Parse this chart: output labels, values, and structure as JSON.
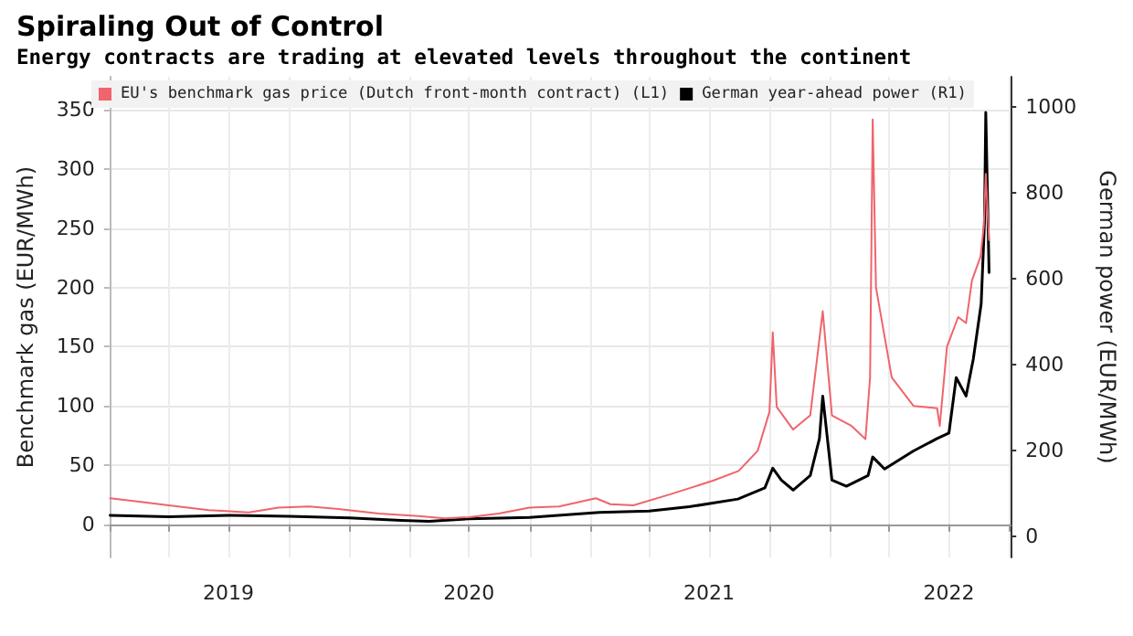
{
  "chart_data": {
    "type": "line",
    "title": "Spiraling Out of Control",
    "subtitle": "Energy contracts are trading at elevated levels throughout the continent",
    "ylabel": "Benchmark gas (EUR/MWh)",
    "y2label": "German power (EUR/MWh)",
    "series": [
      {
        "name": "EU's benchmark gas price (Dutch front-month contract) (L1)",
        "color": "#f0646c",
        "x": [
          "2019-01-02",
          "2019-02-15",
          "2019-04-01",
          "2019-06-01",
          "2019-08-01",
          "2019-09-15",
          "2019-11-01",
          "2019-12-15",
          "2020-02-15",
          "2020-04-15",
          "2020-05-25",
          "2020-07-01",
          "2020-08-15",
          "2020-10-01",
          "2020-11-15",
          "2021-01-10",
          "2021-02-01",
          "2021-03-08",
          "2021-05-01",
          "2021-07-08",
          "2021-08-15",
          "2021-09-13",
          "2021-10-01",
          "2021-10-06",
          "2021-10-12",
          "2021-11-06",
          "2021-12-02",
          "2021-12-21",
          "2022-01-04",
          "2022-02-03",
          "2022-02-24",
          "2022-03-03",
          "2022-03-07",
          "2022-03-12",
          "2022-04-05",
          "2022-05-08",
          "2022-06-13",
          "2022-06-17",
          "2022-06-28",
          "2022-07-15",
          "2022-07-27",
          "2022-08-05",
          "2022-08-18",
          "2022-08-23",
          "2022-08-26",
          "2022-08-29",
          "2022-08-31"
        ],
        "values": [
          22,
          19,
          16,
          12,
          10,
          14,
          15,
          13,
          9,
          7,
          5,
          6,
          9,
          14,
          15,
          22,
          17,
          16,
          25,
          37,
          45,
          62,
          95,
          162,
          99,
          80,
          92,
          180,
          92,
          83,
          72,
          124,
          342,
          200,
          124,
          100,
          98,
          83,
          150,
          175,
          170,
          206,
          226,
          252,
          296,
          262,
          240
        ]
      },
      {
        "name": "German year-ahead power (R1)",
        "color": "#000000",
        "axis": "y2",
        "x": [
          "2019-01-02",
          "2019-04-01",
          "2019-07-01",
          "2019-10-01",
          "2020-01-01",
          "2020-03-20",
          "2020-05-01",
          "2020-07-01",
          "2020-10-01",
          "2021-01-15",
          "2021-04-01",
          "2021-06-01",
          "2021-08-14",
          "2021-09-24",
          "2021-10-06",
          "2021-10-19",
          "2021-11-06",
          "2021-12-02",
          "2021-12-16",
          "2021-12-21",
          "2022-01-04",
          "2022-01-26",
          "2022-02-28",
          "2022-03-07",
          "2022-03-25",
          "2022-05-08",
          "2022-06-13",
          "2022-07-01",
          "2022-07-12",
          "2022-07-27",
          "2022-08-07",
          "2022-08-19",
          "2022-08-24",
          "2022-08-26",
          "2022-08-31"
        ],
        "values": [
          48,
          45,
          48,
          46,
          42,
          36,
          34,
          40,
          43,
          55,
          58,
          68,
          86,
          112,
          158,
          130,
          107,
          141,
          227,
          326,
          130,
          116,
          141,
          184,
          156,
          198,
          227,
          240,
          369,
          326,
          412,
          541,
          730,
          987,
          614
        ]
      }
    ],
    "xlim": [
      "2019-01-01",
      "2022-10-03"
    ],
    "xticks": [
      {
        "value": "2019-01-01",
        "label": null
      },
      {
        "value": "2019-04-01",
        "label": null
      },
      {
        "value": "2019-07-01",
        "label": "2019"
      },
      {
        "value": "2019-10-01",
        "label": null
      },
      {
        "value": "2020-01-01",
        "label": null
      },
      {
        "value": "2020-04-01",
        "label": null
      },
      {
        "value": "2020-07-01",
        "label": "2020"
      },
      {
        "value": "2020-10-01",
        "label": null
      },
      {
        "value": "2021-01-01",
        "label": null
      },
      {
        "value": "2021-04-01",
        "label": null
      },
      {
        "value": "2021-07-01",
        "label": "2021"
      },
      {
        "value": "2021-10-01",
        "label": null
      },
      {
        "value": "2022-01-01",
        "label": null
      },
      {
        "value": "2022-04-01",
        "label": null
      },
      {
        "value": "2022-07-01",
        "label": "2022"
      },
      {
        "value": "2022-10-01",
        "label": null
      }
    ],
    "ylim": [
      -28,
      378
    ],
    "yticks": [
      0,
      50,
      100,
      150,
      200,
      250,
      300,
      350
    ],
    "y2lim": [
      -50,
      1070
    ],
    "y2ticks": [
      0,
      200,
      400,
      600,
      800,
      1000
    ],
    "grid": true,
    "legend": "top left",
    "marker": "none",
    "line_style": "solid"
  }
}
